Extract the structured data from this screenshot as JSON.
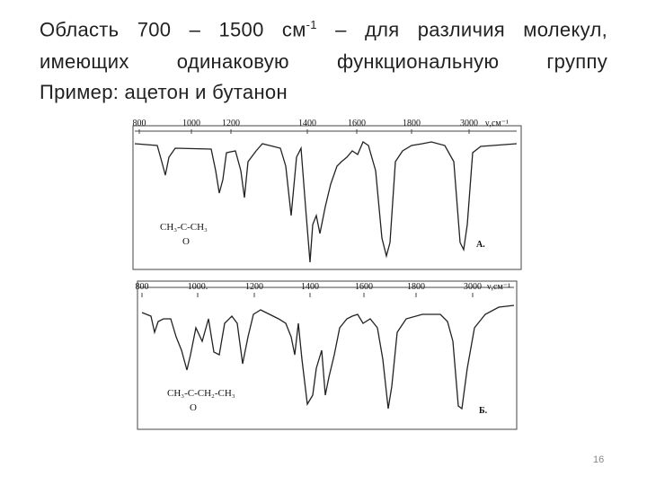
{
  "header": {
    "line1_before": "Область 700 – 1500 см",
    "superscript": "-1",
    "line1_after": " – для различия молекул,",
    "line2": "имеющих одинаковую функциональную группу",
    "line3": "Пример: ацетон и бутанон"
  },
  "spectra": [
    {
      "axis_labels": [
        "800",
        "1000",
        "1200",
        "1400",
        "1600",
        "1800",
        "3000",
        "ν,см⁻¹"
      ],
      "formula_top": "CH₃-C-CH₃",
      "formula_bottom": "O",
      "label": "А."
    },
    {
      "axis_labels": [
        "800",
        "1000.",
        "1200",
        "1400",
        "1600",
        "1800",
        "3000",
        "ν,см⁻¹"
      ],
      "formula_top": "CH₃-C-CH₂-CH₃",
      "formula_bottom": "O",
      "label": "Б."
    }
  ],
  "page_number": "16"
}
